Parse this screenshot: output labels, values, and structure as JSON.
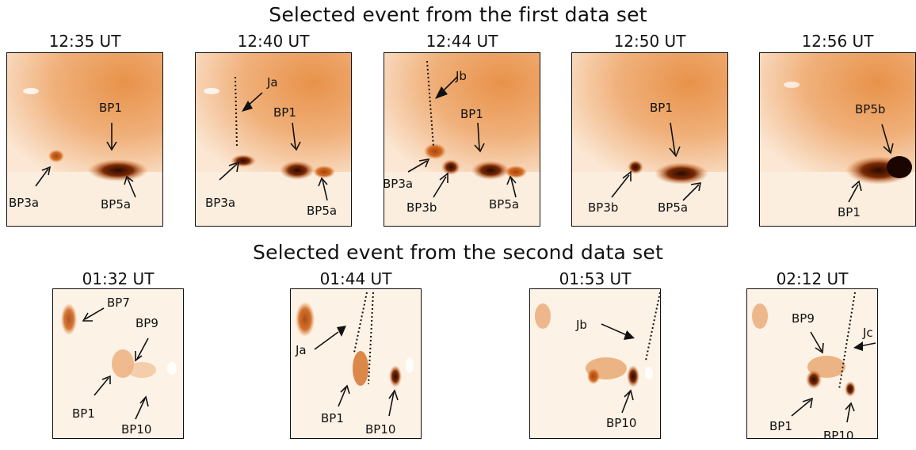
{
  "row1": {
    "title": "Selected event from the first data set",
    "panels": [
      {
        "time": "12:35 UT",
        "labels": [
          "BP1",
          "BP3a",
          "BP5a"
        ]
      },
      {
        "time": "12:40 UT",
        "labels": [
          "Ja",
          "BP1",
          "BP3a",
          "BP5a"
        ]
      },
      {
        "time": "12:44 UT",
        "labels": [
          "Jb",
          "BP1",
          "BP3a",
          "BP3b",
          "BP5a"
        ]
      },
      {
        "time": "12:50 UT",
        "labels": [
          "BP1",
          "BP3b",
          "BP5a"
        ]
      },
      {
        "time": "12:56 UT",
        "labels": [
          "BP5b",
          "BP1"
        ]
      }
    ]
  },
  "row2": {
    "title": "Selected event from the second data set",
    "panels": [
      {
        "time": "01:32 UT",
        "labels": [
          "BP7",
          "BP9",
          "BP1",
          "BP10"
        ]
      },
      {
        "time": "01:44 UT",
        "labels": [
          "Ja",
          "BP1",
          "BP10"
        ]
      },
      {
        "time": "01:53 UT",
        "labels": [
          "Jb",
          "BP10"
        ]
      },
      {
        "time": "02:12 UT",
        "labels": [
          "BP9",
          "Jc",
          "BP1",
          "BP10"
        ]
      }
    ]
  },
  "colors": {
    "bright": "#e2782a",
    "dark": "#2a0a00",
    "background": "#fdf3e8"
  }
}
